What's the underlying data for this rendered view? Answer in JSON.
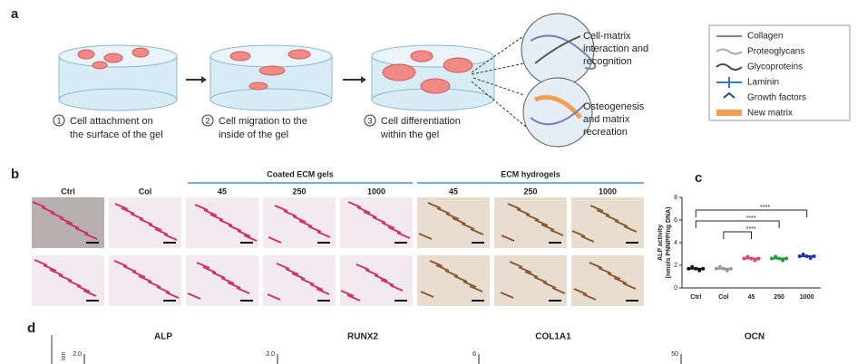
{
  "panel_a": {
    "label": "a",
    "steps": [
      {
        "number": "1",
        "text": [
          "Cell attachment on",
          "the surface of the gel"
        ]
      },
      {
        "number": "2",
        "text": [
          "Cell migration to the",
          "inside of the gel"
        ]
      },
      {
        "number": "3",
        "text": [
          "Cell differentiation",
          "within the gel"
        ]
      }
    ],
    "callouts": [
      [
        "Cell-matrix",
        "interaction and",
        "recognition"
      ],
      [
        "Osteogenesis",
        "and matrix",
        "recreation"
      ]
    ],
    "legend": [
      "Collagen",
      "Proteoglycans",
      "Glycoproteins",
      "Laminin",
      "Growth factors",
      "New matrix"
    ]
  },
  "panel_b": {
    "label": "b",
    "groups": [
      "Coated ECM gels",
      "ECM hydrogels"
    ],
    "columns": [
      "Ctrl",
      "Col",
      "45",
      "250",
      "1000",
      "45",
      "250",
      "1000"
    ]
  },
  "panel_c": {
    "label": "c",
    "y_label": [
      "ALP activity",
      "(nmols PNNPP/ng DNA)"
    ],
    "ylim": [
      0,
      8
    ],
    "yticks": [
      0,
      2,
      4,
      6,
      8
    ],
    "categories": [
      "Ctrl",
      "Col",
      "45",
      "250",
      "1000"
    ],
    "values": [
      1.7,
      1.7,
      2.6,
      2.6,
      2.8
    ],
    "colors": [
      "#111111",
      "#999999",
      "#e0407a",
      "#1a9a3a",
      "#2233aa"
    ],
    "significance": [
      "****",
      "****",
      "****"
    ]
  },
  "panel_d": {
    "label": "d",
    "titles": [
      "ALP",
      "RUNX2",
      "COL1A1",
      "OCN"
    ],
    "ticks": [
      "2.0",
      "2.0",
      "6",
      "50"
    ],
    "y_label_fragment": "ion"
  }
}
